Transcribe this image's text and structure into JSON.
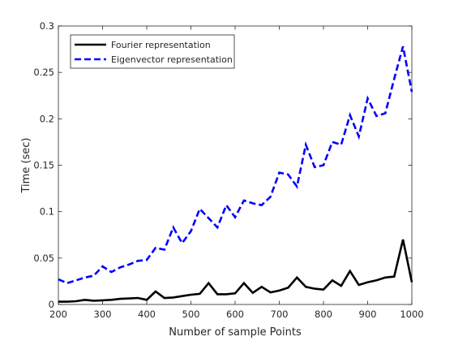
{
  "chart_data": {
    "type": "line",
    "title": "",
    "xlabel": "Number of sample Points",
    "ylabel": "Time (sec)",
    "xlim": [
      200,
      1000
    ],
    "ylim": [
      0,
      0.3
    ],
    "xticks": [
      200,
      300,
      400,
      500,
      600,
      700,
      800,
      900,
      1000
    ],
    "xtick_labels": [
      "200",
      "300",
      "400",
      "500",
      "600",
      "700",
      "800",
      "900",
      "1000"
    ],
    "yticks": [
      0,
      0.05,
      0.1,
      0.15,
      0.2,
      0.25,
      0.3
    ],
    "ytick_labels": [
      "0",
      "0.05",
      "0.1",
      "0.15",
      "0.2",
      "0.25",
      "0.3"
    ],
    "grid": false,
    "legend_position": "top-left",
    "x": [
      200,
      220,
      240,
      260,
      280,
      300,
      320,
      340,
      360,
      380,
      400,
      420,
      440,
      460,
      480,
      500,
      520,
      540,
      560,
      580,
      600,
      620,
      640,
      660,
      680,
      700,
      720,
      740,
      760,
      780,
      800,
      820,
      840,
      860,
      880,
      900,
      920,
      940,
      960,
      980,
      1000
    ],
    "series": [
      {
        "name": "Fourier representation",
        "color": "#000000",
        "style": "solid",
        "values": [
          0.003,
          0.003,
          0.0035,
          0.005,
          0.004,
          0.0045,
          0.005,
          0.006,
          0.0065,
          0.007,
          0.005,
          0.014,
          0.007,
          0.0075,
          0.009,
          0.0105,
          0.0115,
          0.023,
          0.011,
          0.011,
          0.012,
          0.023,
          0.0125,
          0.019,
          0.013,
          0.015,
          0.018,
          0.029,
          0.019,
          0.017,
          0.016,
          0.026,
          0.02,
          0.036,
          0.021,
          0.024,
          0.026,
          0.029,
          0.03,
          0.07,
          0.024
        ]
      },
      {
        "name": "Eigenvector representation",
        "color": "#0000ff",
        "style": "dashed",
        "values": [
          0.027,
          0.023,
          0.026,
          0.029,
          0.031,
          0.041,
          0.035,
          0.04,
          0.043,
          0.047,
          0.048,
          0.061,
          0.059,
          0.083,
          0.066,
          0.079,
          0.103,
          0.093,
          0.083,
          0.107,
          0.094,
          0.112,
          0.109,
          0.107,
          0.116,
          0.142,
          0.14,
          0.127,
          0.172,
          0.148,
          0.15,
          0.175,
          0.172,
          0.204,
          0.181,
          0.222,
          0.203,
          0.206,
          0.243,
          0.278,
          0.229
        ]
      }
    ]
  }
}
